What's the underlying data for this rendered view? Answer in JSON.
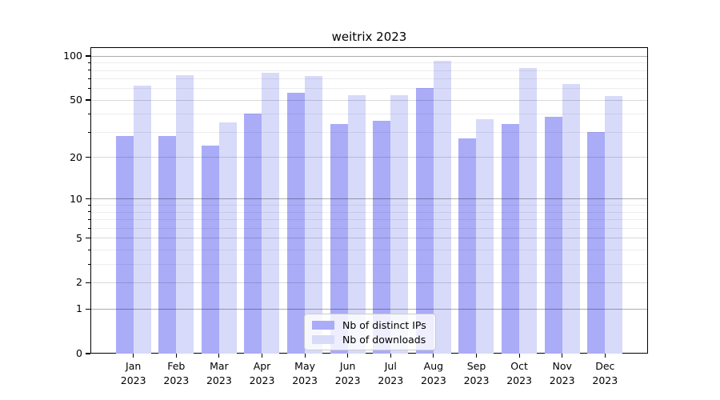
{
  "chart_data": {
    "type": "bar",
    "title": "weitrix 2023",
    "categories": [
      "Jan",
      "Feb",
      "Mar",
      "Apr",
      "May",
      "Jun",
      "Jul",
      "Aug",
      "Sep",
      "Oct",
      "Nov",
      "Dec"
    ],
    "year_label": "2023",
    "series": [
      {
        "name": "Nb of distinct IPs",
        "color": "#aaacf7",
        "values": [
          28,
          28,
          24,
          40,
          56,
          34,
          36,
          60,
          27,
          34,
          38,
          30
        ]
      },
      {
        "name": "Nb of downloads",
        "color": "#d8dafa",
        "values": [
          63,
          74,
          35,
          77,
          73,
          54,
          54,
          92,
          37,
          83,
          64,
          53
        ]
      }
    ],
    "yscale": "log1p",
    "yticks": [
      0,
      1,
      2,
      5,
      10,
      20,
      50,
      100
    ],
    "major_gridlines": [
      1,
      10,
      100
    ],
    "mid_gridlines": [
      2,
      5,
      20,
      50
    ],
    "minor_gridlines": [
      3,
      4,
      6,
      7,
      8,
      9,
      30,
      40,
      60,
      70,
      80,
      90
    ],
    "ylim": [
      0,
      114.7
    ],
    "grid": true,
    "legend_position": "inside lower center",
    "colors": {
      "axis": "#000000",
      "grid_major": "rgba(0,0,0,0.32)",
      "grid_mid": "rgba(0,0,0,0.15)",
      "grid_minor": "rgba(0,0,0,0.07)",
      "legend_border": "#cccccc",
      "legend_background": "rgba(255,255,255,0.8)"
    }
  }
}
